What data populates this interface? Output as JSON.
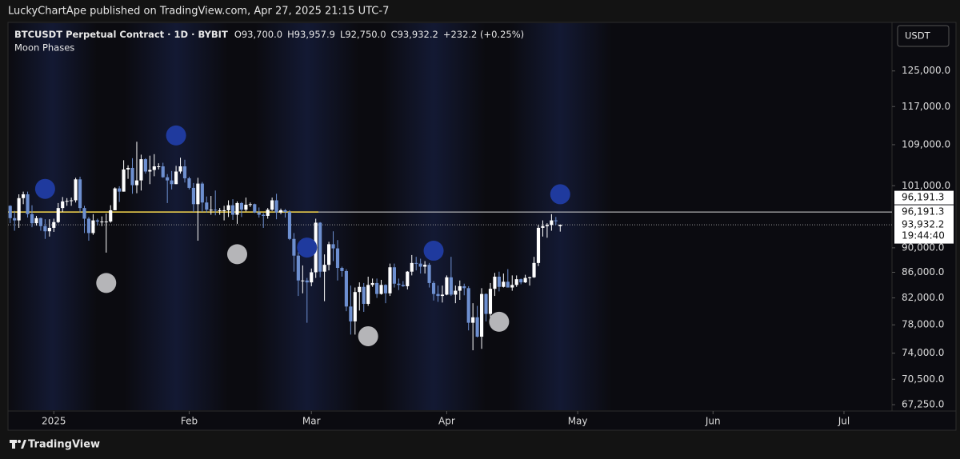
{
  "header": {
    "publisher": "LuckyChartApe published on TradingView.com, Apr 27, 2025 21:15 UTC-7",
    "brand": "TradingView"
  },
  "chart_data": {
    "type": "candlestick",
    "title": "BTCUSDT Perpetual Contract · 1D · BYBIT",
    "legend_values": [
      "O93,700.0",
      "H93,957.9",
      "L92,750.0",
      "C93,932.2",
      "+232.2 (+0.25%)"
    ],
    "indicator": "Moon Phases",
    "currency": "USDT",
    "log_scale": true,
    "grid": false,
    "up_color": "#ffffff",
    "down_color": "#6d8fd0",
    "ohlc": [
      [
        97300,
        97400,
        94200,
        95100
      ],
      [
        95100,
        96400,
        92900,
        94700
      ],
      [
        94700,
        99400,
        93400,
        98700
      ],
      [
        98700,
        99900,
        97600,
        99400
      ],
      [
        99400,
        99900,
        95200,
        95800
      ],
      [
        95800,
        97400,
        93500,
        94200
      ],
      [
        94200,
        95500,
        93800,
        95100
      ],
      [
        95100,
        95200,
        92900,
        93700
      ],
      [
        93700,
        94900,
        91500,
        92800
      ],
      [
        92800,
        94900,
        91900,
        93400
      ],
      [
        93400,
        95000,
        92700,
        94400
      ],
      [
        94400,
        97800,
        94200,
        96900
      ],
      [
        96900,
        98900,
        96200,
        98100
      ],
      [
        98100,
        98700,
        97300,
        98200
      ],
      [
        98200,
        98800,
        97300,
        98300
      ],
      [
        98300,
        102500,
        97900,
        102200
      ],
      [
        102200,
        102700,
        96100,
        96900
      ],
      [
        96900,
        97300,
        92500,
        95000
      ],
      [
        95000,
        95300,
        91200,
        92500
      ],
      [
        92500,
        95800,
        92200,
        94700
      ],
      [
        94700,
        95000,
        93800,
        94500
      ],
      [
        94500,
        95400,
        93700,
        94500
      ],
      [
        94500,
        95900,
        89200,
        94500
      ],
      [
        94500,
        97400,
        94300,
        96500
      ],
      [
        96500,
        100700,
        96500,
        100500
      ],
      [
        100500,
        100900,
        98000,
        99900
      ],
      [
        99900,
        105900,
        99900,
        104100
      ],
      [
        104100,
        104900,
        102300,
        104400
      ],
      [
        104400,
        106300,
        99500,
        101100
      ],
      [
        101100,
        109600,
        99600,
        102000
      ],
      [
        102000,
        107000,
        100100,
        106100
      ],
      [
        106100,
        106300,
        103300,
        103700
      ],
      [
        103700,
        106800,
        101300,
        104000
      ],
      [
        104000,
        107100,
        102800,
        104700
      ],
      [
        104700,
        105300,
        104100,
        104700
      ],
      [
        104700,
        105400,
        102500,
        102600
      ],
      [
        102600,
        103200,
        97800,
        102000
      ],
      [
        102000,
        103800,
        100300,
        101300
      ],
      [
        101300,
        104800,
        101300,
        103700
      ],
      [
        103700,
        106400,
        103300,
        104700
      ],
      [
        104700,
        106000,
        101600,
        102400
      ],
      [
        102400,
        102700,
        100300,
        100600
      ],
      [
        100600,
        101500,
        96200,
        97600
      ],
      [
        97600,
        102500,
        91200,
        101400
      ],
      [
        101400,
        101700,
        96200,
        97900
      ],
      [
        97900,
        99000,
        96100,
        96600
      ],
      [
        96600,
        99100,
        95700,
        96600
      ],
      [
        96600,
        100100,
        95600,
        96500
      ],
      [
        96500,
        96900,
        95700,
        96500
      ],
      [
        96500,
        97300,
        94700,
        96500
      ],
      [
        96500,
        98300,
        95300,
        97400
      ],
      [
        97400,
        98500,
        94800,
        95700
      ],
      [
        95700,
        98100,
        94100,
        97800
      ],
      [
        97800,
        98000,
        95300,
        96600
      ],
      [
        96600,
        98800,
        96300,
        97500
      ],
      [
        97500,
        97900,
        97100,
        97600
      ],
      [
        97600,
        97700,
        96000,
        96100
      ],
      [
        96100,
        97000,
        95200,
        95700
      ],
      [
        95700,
        96000,
        93400,
        95500
      ],
      [
        95500,
        96900,
        95000,
        96600
      ],
      [
        96600,
        98800,
        96400,
        98300
      ],
      [
        98300,
        99500,
        94900,
        96100
      ],
      [
        96100,
        96800,
        95800,
        96500
      ],
      [
        96500,
        96700,
        95200,
        96200
      ],
      [
        96200,
        96500,
        91300,
        91500
      ],
      [
        91500,
        92500,
        86100,
        88700
      ],
      [
        88700,
        89300,
        82300,
        84700
      ],
      [
        84700,
        87100,
        82700,
        84700
      ],
      [
        84700,
        85100,
        78300,
        84400
      ],
      [
        84400,
        86600,
        83800,
        86000
      ],
      [
        86000,
        95000,
        85100,
        94300
      ],
      [
        94300,
        94400,
        85200,
        86100
      ],
      [
        86100,
        88900,
        81500,
        87200
      ],
      [
        87200,
        91000,
        86300,
        90600
      ],
      [
        90600,
        92800,
        87800,
        89900
      ],
      [
        89900,
        91300,
        84700,
        86700
      ],
      [
        86700,
        86900,
        85300,
        86200
      ],
      [
        86200,
        86500,
        80000,
        80700
      ],
      [
        80700,
        83900,
        76600,
        78500
      ],
      [
        78500,
        83600,
        76600,
        82900
      ],
      [
        82900,
        84400,
        80100,
        83700
      ],
      [
        83700,
        84300,
        79900,
        81100
      ],
      [
        81100,
        85300,
        80800,
        84000
      ],
      [
        84000,
        85000,
        83700,
        84300
      ],
      [
        84300,
        85000,
        82000,
        82600
      ],
      [
        82600,
        84800,
        82500,
        84000
      ],
      [
        84000,
        84100,
        81200,
        82700
      ],
      [
        82700,
        87400,
        82300,
        86800
      ],
      [
        86800,
        87400,
        83600,
        84200
      ],
      [
        84200,
        85000,
        83200,
        84000
      ],
      [
        84000,
        84600,
        83700,
        83800
      ],
      [
        83800,
        86200,
        83300,
        86100
      ],
      [
        86100,
        88800,
        85500,
        87500
      ],
      [
        87500,
        88500,
        86300,
        87400
      ],
      [
        87400,
        88200,
        85800,
        86900
      ],
      [
        86900,
        87800,
        85800,
        87200
      ],
      [
        87200,
        87500,
        83600,
        84300
      ],
      [
        84300,
        84600,
        81600,
        82600
      ],
      [
        82600,
        83900,
        81400,
        82300
      ],
      [
        82300,
        83900,
        81300,
        82500
      ],
      [
        82500,
        85500,
        82400,
        85200
      ],
      [
        85200,
        88500,
        82300,
        82500
      ],
      [
        82500,
        83900,
        81200,
        83100
      ],
      [
        83100,
        84700,
        81700,
        83800
      ],
      [
        83800,
        84200,
        82400,
        83500
      ],
      [
        83500,
        83800,
        77200,
        78300
      ],
      [
        78300,
        81200,
        74400,
        79100
      ],
      [
        79100,
        80800,
        76200,
        76300
      ],
      [
        76300,
        83500,
        74600,
        82600
      ],
      [
        82600,
        82700,
        78500,
        79600
      ],
      [
        79600,
        84300,
        78900,
        83400
      ],
      [
        83400,
        85900,
        82300,
        85300
      ],
      [
        85300,
        86100,
        83000,
        83700
      ],
      [
        83700,
        85800,
        83600,
        84500
      ],
      [
        84500,
        86500,
        83600,
        83600
      ],
      [
        83600,
        85500,
        83100,
        84000
      ],
      [
        84000,
        85500,
        83700,
        84900
      ],
      [
        84900,
        85000,
        84100,
        84400
      ],
      [
        84400,
        85600,
        84300,
        85100
      ],
      [
        85100,
        85300,
        83900,
        85200
      ],
      [
        85200,
        88500,
        85100,
        87500
      ],
      [
        87500,
        93900,
        87000,
        93400
      ],
      [
        93400,
        94700,
        91900,
        93700
      ],
      [
        93700,
        94200,
        91700,
        93900
      ],
      [
        93900,
        95800,
        92900,
        94700
      ],
      [
        94700,
        95300,
        93900,
        94600
      ],
      [
        93700,
        93957.9,
        92750,
        93932.2
      ]
    ],
    "new_moons": [
      8,
      38,
      68,
      97,
      126
    ],
    "full_moons": [
      22,
      52,
      82,
      112
    ],
    "new_moon_color": "#1f3a9e",
    "full_moon_color": "#b5b5b8",
    "level": {
      "value": 96191.3,
      "label": "96,191.3"
    },
    "level_color": "#f2d34a",
    "last_price": {
      "value": 93932.2,
      "label": "93,932.2"
    },
    "countdown": "19:44:40",
    "xlim": [
      -0.5,
      202
    ],
    "xticks": [
      {
        "value": 10,
        "label": "2025"
      },
      {
        "value": 41,
        "label": "Feb"
      },
      {
        "value": 69,
        "label": "Mar"
      },
      {
        "value": 100,
        "label": "Apr"
      },
      {
        "value": 130,
        "label": "May"
      },
      {
        "value": 161,
        "label": "Jun"
      },
      {
        "value": 191,
        "label": "Jul"
      }
    ],
    "ylim": [
      66460,
      136800
    ],
    "yticks": [
      {
        "value": 67250,
        "label": "67,250.0"
      },
      {
        "value": 70500,
        "label": "70,500.0"
      },
      {
        "value": 74000,
        "label": "74,000.0"
      },
      {
        "value": 78000,
        "label": "78,000.0"
      },
      {
        "value": 82000,
        "label": "82,000.0"
      },
      {
        "value": 86000,
        "label": "86,000.0"
      },
      {
        "value": 90000,
        "label": "90,000.0"
      },
      {
        "value": 101000,
        "label": "101,000.0"
      },
      {
        "value": 109000,
        "label": "109,000.0"
      },
      {
        "value": 117000,
        "label": "117,000.0"
      },
      {
        "value": 125000,
        "label": "125,000.0"
      }
    ]
  }
}
